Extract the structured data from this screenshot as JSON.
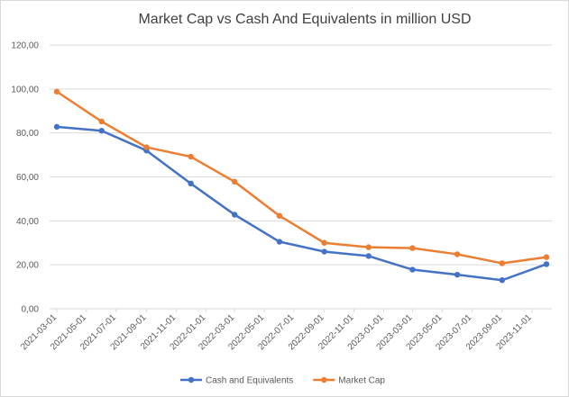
{
  "chart_data": {
    "type": "line",
    "title": "Market Cap vs Cash And Equivalents in million USD",
    "x": [
      "2021-03-01",
      "2021-06-01",
      "2021-09-01",
      "2021-12-01",
      "2022-03-01",
      "2022-06-01",
      "2022-09-01",
      "2022-12-01",
      "2023-03-01",
      "2023-06-01",
      "2023-09-01",
      "2023-12-01"
    ],
    "series": [
      {
        "name": "Cash and Equivalents",
        "color": "#4472c4",
        "values": [
          82.8,
          81,
          72,
          57,
          42.8,
          30.5,
          26,
          24,
          17.8,
          15.5,
          13,
          20.3
        ]
      },
      {
        "name": "Market Cap",
        "color": "#ed7d31",
        "values": [
          98.8,
          85.2,
          73.5,
          69.2,
          57.8,
          42.3,
          30,
          28,
          27.6,
          24.8,
          20.7,
          23.5
        ]
      }
    ],
    "xlim": [
      "2021-03-01",
      "2023-12-01"
    ],
    "xticks": [
      "2021-03-01",
      "2021-05-01",
      "2021-07-01",
      "2021-09-01",
      "2021-11-01",
      "2022-01-01",
      "2022-03-01",
      "2022-05-01",
      "2022-07-01",
      "2022-09-01",
      "2022-11-01",
      "2023-01-01",
      "2023-03-01",
      "2023-05-01",
      "2023-07-01",
      "2023-09-01",
      "2023-11-01"
    ],
    "ylim": [
      0,
      120
    ],
    "yticks": [
      {
        "value": 0,
        "label": "0,00"
      },
      {
        "value": 20,
        "label": "20,00"
      },
      {
        "value": 40,
        "label": "40,00"
      },
      {
        "value": 60,
        "label": "60,00"
      },
      {
        "value": 80,
        "label": "80,00"
      },
      {
        "value": 100,
        "label": "100,00"
      },
      {
        "value": 120,
        "label": "120,00"
      }
    ],
    "grid": true,
    "legend": "bottom"
  }
}
